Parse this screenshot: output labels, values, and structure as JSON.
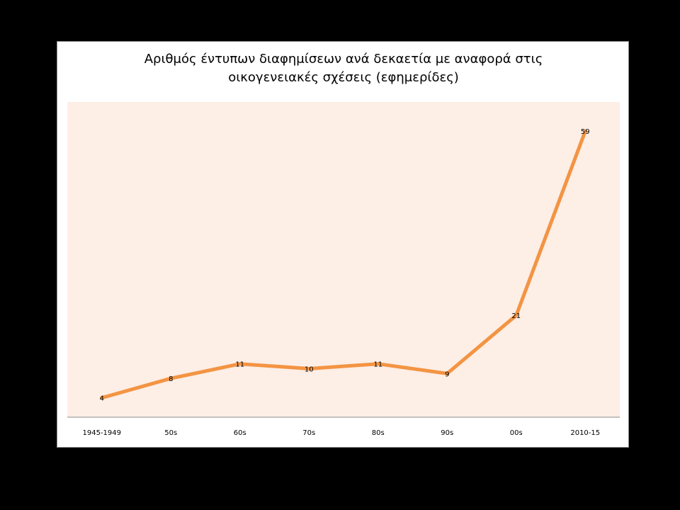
{
  "chart_data": {
    "type": "line",
    "title_lines": [
      "Αριθμός έντυπων διαφημίσεων ανά δεκαετία με αναφορά στις",
      "οικογενειακές σχέσεις (εφημερίδες)"
    ],
    "categories": [
      "1945-1949",
      "50s",
      "60s",
      "70s",
      "80s",
      "90s",
      "00s",
      "2010-15"
    ],
    "series": [
      {
        "values": [
          4,
          8,
          11,
          10,
          11,
          9,
          21,
          59
        ],
        "color": "#f39443"
      }
    ],
    "ylim": [
      0,
      65
    ],
    "y_axis_visible": false,
    "grid": false,
    "legend": "none",
    "plot_background": "#fdeee6",
    "data_labels": true
  }
}
